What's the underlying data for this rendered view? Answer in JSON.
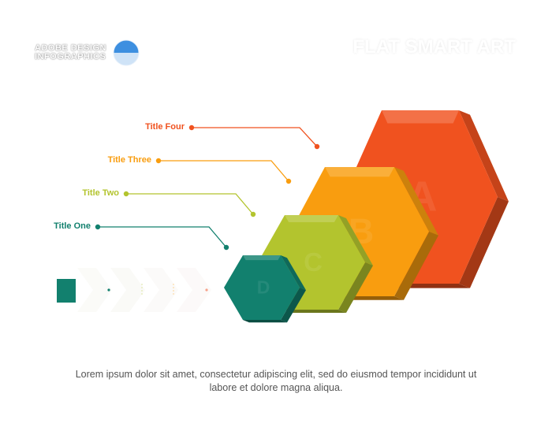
{
  "header": {
    "brand_line1": "ADOBE DESIGN",
    "brand_line2": "INFOGRAPHICS",
    "title": "FLAT SMART ART"
  },
  "steps": [
    {
      "title": "Title One",
      "letter": "D",
      "color": "#12806e"
    },
    {
      "title": "Title Two",
      "letter": "C",
      "color": "#b3c42e"
    },
    {
      "title": "Title Three",
      "letter": "B",
      "color": "#f99d0f"
    },
    {
      "title": "Title Four",
      "letter": "A",
      "color": "#f0521f"
    }
  ],
  "caption": "Lorem ipsum dolor sit amet, consectetur adipiscing elit, sed do eiusmod tempor incididunt ut labore et dolore magna aliqua."
}
